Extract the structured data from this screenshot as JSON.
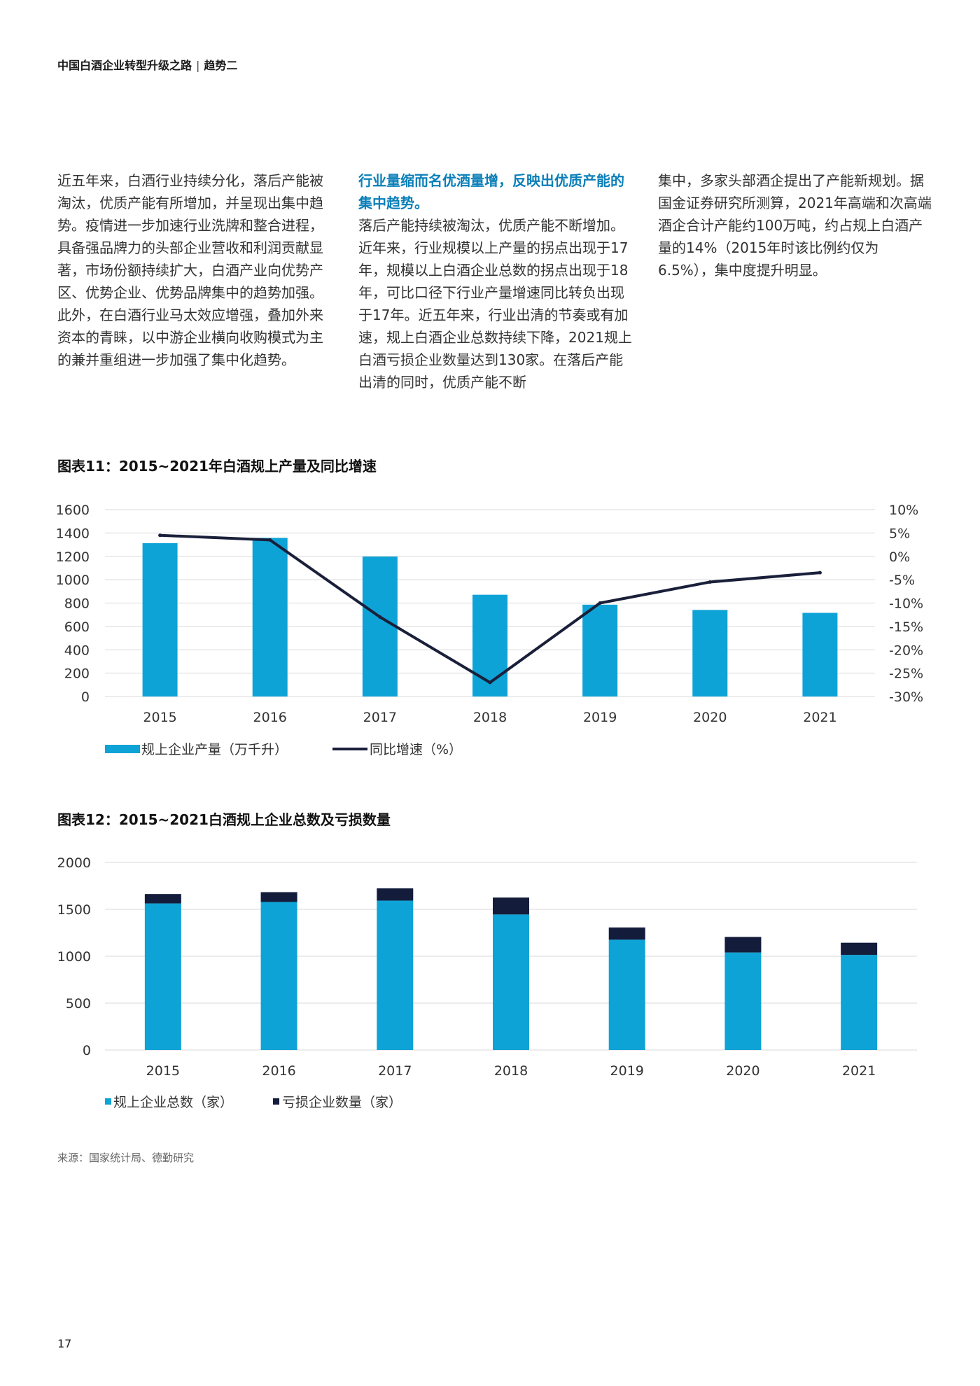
{
  "header": {
    "title": "中国白酒企业转型升级之路",
    "separator": "|",
    "section": "趋势二"
  },
  "columns": {
    "col1": "近五年来，白酒行业持续分化，落后产能被淘汰，优质产能有所增加，并呈现出集中趋势。疫情进一步加速行业洗牌和整合进程，具备强品牌力的头部企业营收和利润贡献显著，市场份额持续扩大，白酒产业向优势产区、优势企业、优势品牌集中的趋势加强。此外，在白酒行业马太效应增强，叠加外来资本的青睐，以中游企业横向收购模式为主的兼并重组进一步加强了集中化趋势。",
    "col2_heading": "行业量缩而名优酒量增，反映出优质产能的集中趋势。",
    "col2": "落后产能持续被淘汰，优质产能不断增加。近年来，行业规模以上产量的拐点出现于17年，规模以上白酒企业总数的拐点出现于18年，可比口径下行业产量增速同比转负出现于17年。近五年来，行业出清的节奏或有加速，规上白酒企业总数持续下降，2021规上白酒亏损企业数量达到130家。在落后产能出清的同时，优质产能不断",
    "col3": "集中，多家头部酒企提出了产能新规划。据国金证券研究所测算，2021年高端和次高端酒企合计产能约100万吨，约占规上白酒产量的14%（2015年时该比例约仅为6.5%），集中度提升明显。"
  },
  "figure11_title": "图表11：2015~2021年白酒规上产量及同比增速",
  "figure12_title": "图表12：2015~2021白酒规上企业总数及亏损数量",
  "source": "来源：国家统计局、德勤研究",
  "page_number": "17",
  "chart_data": [
    {
      "type": "bar",
      "categories": [
        "2015",
        "2016",
        "2017",
        "2018",
        "2019",
        "2020",
        "2021"
      ],
      "series": [
        {
          "name": "规上企业产量（万千升）",
          "type": "bar",
          "axis": "left",
          "values": [
            1313,
            1358,
            1198,
            871,
            786,
            741,
            716
          ]
        },
        {
          "name": "同比增速（%）",
          "type": "line",
          "axis": "right",
          "values": [
            4.5,
            3.5,
            -13,
            -27,
            -10,
            -5.5,
            -3.5
          ]
        }
      ],
      "ylim": [
        0,
        1600
      ],
      "yticks": [
        "0",
        "200",
        "400",
        "600",
        "800",
        "1000",
        "1200",
        "1400",
        "1600"
      ],
      "y2lim": [
        -30,
        10
      ],
      "y2ticks": [
        "-30%",
        "-25%",
        "-20%",
        "-15%",
        "-10%",
        "-5%",
        "0%",
        "5%",
        "10%"
      ],
      "grid": true,
      "legend_position": "bottom-left",
      "colors": {
        "bar": "#0ea3d6",
        "line": "#1a1f3a",
        "grid": "#d9d9d9"
      }
    },
    {
      "type": "bar",
      "stacked": true,
      "categories": [
        "2015",
        "2016",
        "2017",
        "2018",
        "2019",
        "2020",
        "2021"
      ],
      "series": [
        {
          "name": "规上企业总数（家）",
          "values": [
            1563,
            1578,
            1593,
            1445,
            1176,
            1040,
            1014
          ]
        },
        {
          "name": "亏损企业数量（家）",
          "values": [
            100,
            105,
            130,
            180,
            130,
            165,
            130
          ]
        }
      ],
      "ylim": [
        0,
        2000
      ],
      "yticks": [
        "0",
        "500",
        "1000",
        "1500",
        "2000"
      ],
      "grid": true,
      "legend_position": "bottom-left",
      "colors": {
        "total": "#0ea3d6",
        "loss": "#141c3c",
        "grid": "#d9d9d9"
      }
    }
  ]
}
